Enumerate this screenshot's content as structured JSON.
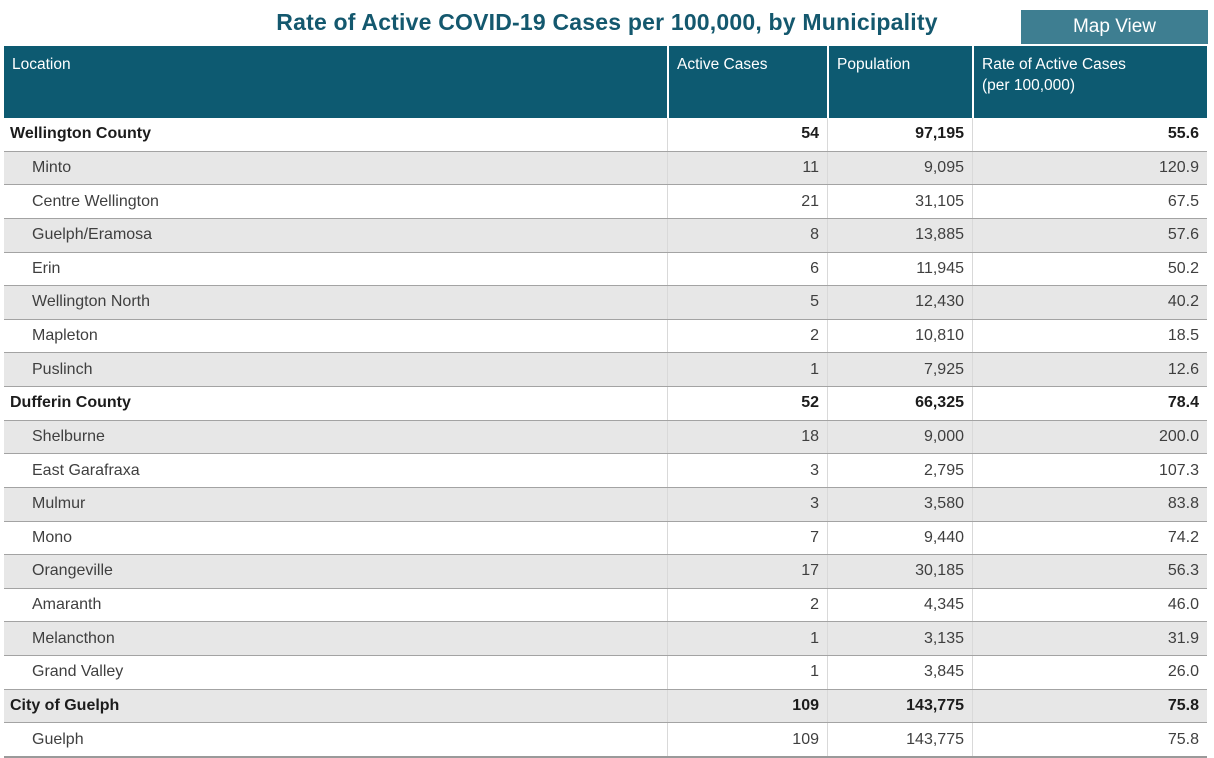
{
  "title": "Rate of Active COVID-19 Cases per 100,000, by Municipality",
  "toolbar": {
    "map_view_label": "Map View"
  },
  "colors": {
    "header_background": "#0d5a71",
    "title_text": "#14586e",
    "button_background": "#3e7e91",
    "stripe_background": "#e7e7e7"
  },
  "table": {
    "columns": [
      {
        "label": "Location"
      },
      {
        "label": "Active Cases"
      },
      {
        "label": "Population"
      },
      {
        "label": "Rate of Active Cases",
        "label2": "(per 100,000)"
      }
    ],
    "rows": [
      {
        "location": "Wellington County",
        "active_cases": "54",
        "population": "97,195",
        "rate": "55.6",
        "group": true
      },
      {
        "location": "Minto",
        "active_cases": "11",
        "population": "9,095",
        "rate": "120.9",
        "group": false
      },
      {
        "location": "Centre Wellington",
        "active_cases": "21",
        "population": "31,105",
        "rate": "67.5",
        "group": false
      },
      {
        "location": "Guelph/Eramosa",
        "active_cases": "8",
        "population": "13,885",
        "rate": "57.6",
        "group": false
      },
      {
        "location": "Erin",
        "active_cases": "6",
        "population": "11,945",
        "rate": "50.2",
        "group": false
      },
      {
        "location": "Wellington North",
        "active_cases": "5",
        "population": "12,430",
        "rate": "40.2",
        "group": false
      },
      {
        "location": "Mapleton",
        "active_cases": "2",
        "population": "10,810",
        "rate": "18.5",
        "group": false
      },
      {
        "location": "Puslinch",
        "active_cases": "1",
        "population": "7,925",
        "rate": "12.6",
        "group": false
      },
      {
        "location": "Dufferin County",
        "active_cases": "52",
        "population": "66,325",
        "rate": "78.4",
        "group": true
      },
      {
        "location": "Shelburne",
        "active_cases": "18",
        "population": "9,000",
        "rate": "200.0",
        "group": false
      },
      {
        "location": "East Garafraxa",
        "active_cases": "3",
        "population": "2,795",
        "rate": "107.3",
        "group": false
      },
      {
        "location": "Mulmur",
        "active_cases": "3",
        "population": "3,580",
        "rate": "83.8",
        "group": false
      },
      {
        "location": "Mono",
        "active_cases": "7",
        "population": "9,440",
        "rate": "74.2",
        "group": false
      },
      {
        "location": "Orangeville",
        "active_cases": "17",
        "population": "30,185",
        "rate": "56.3",
        "group": false
      },
      {
        "location": "Amaranth",
        "active_cases": "2",
        "population": "4,345",
        "rate": "46.0",
        "group": false
      },
      {
        "location": "Melancthon",
        "active_cases": "1",
        "population": "3,135",
        "rate": "31.9",
        "group": false
      },
      {
        "location": "Grand Valley",
        "active_cases": "1",
        "population": "3,845",
        "rate": "26.0",
        "group": false
      },
      {
        "location": "City of Guelph",
        "active_cases": "109",
        "population": "143,775",
        "rate": "75.8",
        "group": true
      },
      {
        "location": "Guelph",
        "active_cases": "109",
        "population": "143,775",
        "rate": "75.8",
        "group": false
      }
    ]
  }
}
